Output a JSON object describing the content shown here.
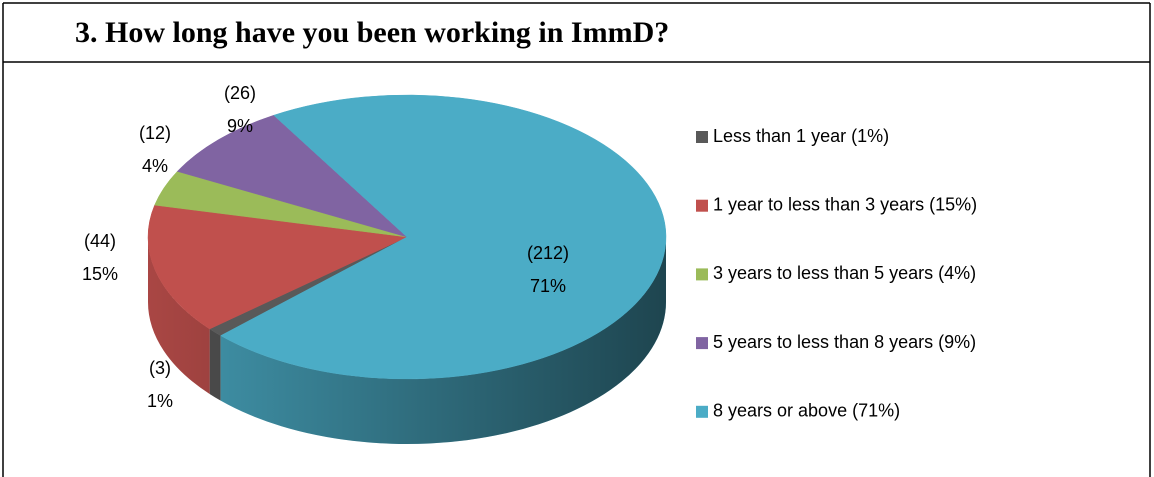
{
  "chart_data": {
    "type": "pie3d",
    "title": "3.  How long have you been working in ImmD?",
    "categories": [
      "Less than 1 year (1%)",
      "1 year to less than 3 years (15%)",
      "3 years to less than 5 years (4%)",
      "5 years to less than 8 years (9%)",
      "8 years or above (71%)"
    ],
    "values": [
      3,
      44,
      12,
      26,
      212
    ],
    "value_labels": [
      "(3)",
      "(44)",
      "(12)",
      "(26)",
      "(212)"
    ],
    "percent_labels": [
      "1%",
      "15%",
      "4%",
      "9%",
      "71%"
    ],
    "colors": [
      "#595959",
      "#c0504d",
      "#9bbb59",
      "#8064a2",
      "#4bacc6"
    ],
    "legend": "right"
  }
}
